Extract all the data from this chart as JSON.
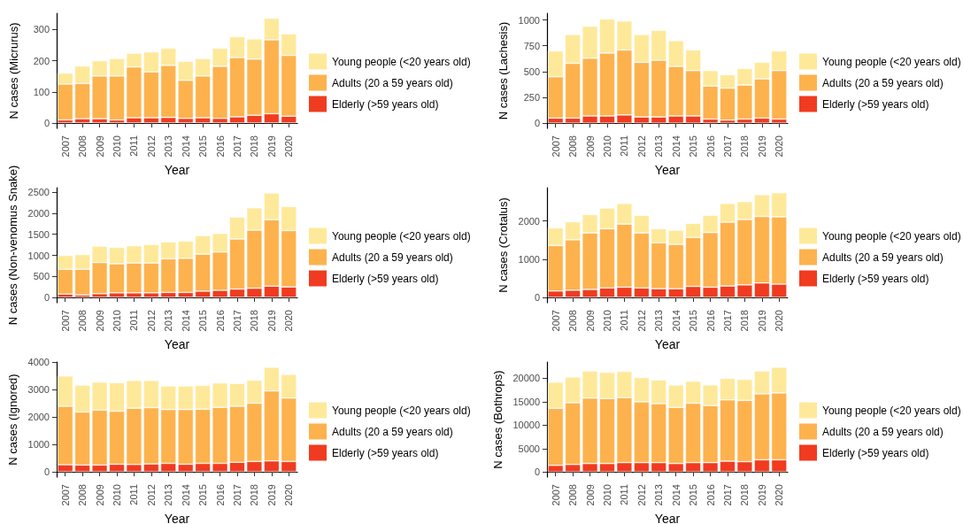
{
  "chart_data": [
    {
      "type": "bar",
      "stacked": true,
      "xlabel": "Year",
      "ylabel": "N cases (Micrurus)",
      "categories": [
        "2007",
        "2008",
        "2009",
        "2010",
        "2011",
        "2012",
        "2013",
        "2014",
        "2015",
        "2016",
        "2017",
        "2018",
        "2019",
        "2020"
      ],
      "ylim": [
        -17,
        352
      ],
      "yticks": [
        0,
        100,
        200,
        300
      ],
      "grid": false,
      "legend": "right",
      "series": [
        {
          "name": "Elderly (>59 years old)",
          "color": "#f03b20",
          "values": [
            10,
            14,
            14,
            10,
            17,
            17,
            18,
            15,
            17,
            15,
            20,
            25,
            30,
            22
          ]
        },
        {
          "name": "Adults (20 a 59 years old)",
          "color": "#fdb24d",
          "values": [
            115,
            113,
            137,
            141,
            163,
            147,
            167,
            122,
            134,
            167,
            190,
            180,
            237,
            195
          ]
        },
        {
          "name": "Young people (<20 years old)",
          "color": "#fee99a",
          "values": [
            35,
            56,
            49,
            56,
            44,
            64,
            55,
            61,
            56,
            58,
            67,
            65,
            69,
            69
          ]
        }
      ]
    },
    {
      "type": "bar",
      "stacked": true,
      "xlabel": "Year",
      "ylabel": "N cases (Lachesis)",
      "categories": [
        "2007",
        "2008",
        "2009",
        "2010",
        "2011",
        "2012",
        "2013",
        "2014",
        "2015",
        "2016",
        "2017",
        "2018",
        "2019",
        "2020"
      ],
      "ylim": [
        -50,
        1065
      ],
      "yticks": [
        0,
        250,
        500,
        750,
        1000
      ],
      "grid": false,
      "legend": "right",
      "series": [
        {
          "name": "Elderly (>59 years old)",
          "color": "#f03b20",
          "values": [
            50,
            50,
            70,
            70,
            80,
            60,
            60,
            70,
            70,
            40,
            30,
            40,
            50,
            40
          ]
        },
        {
          "name": "Adults (20 a 59 years old)",
          "color": "#fdb24d",
          "values": [
            400,
            530,
            560,
            610,
            630,
            530,
            550,
            480,
            440,
            320,
            310,
            330,
            380,
            470
          ]
        },
        {
          "name": "Young people (<20 years old)",
          "color": "#fee99a",
          "values": [
            250,
            280,
            310,
            330,
            280,
            270,
            290,
            250,
            200,
            150,
            130,
            160,
            160,
            190
          ]
        }
      ]
    },
    {
      "type": "bar",
      "stacked": true,
      "xlabel": "Year",
      "ylabel": "N cases (Non-venomus Snake)",
      "categories": [
        "2007",
        "2008",
        "2009",
        "2010",
        "2011",
        "2012",
        "2013",
        "2014",
        "2015",
        "2016",
        "2017",
        "2018",
        "2019",
        "2020"
      ],
      "ylim": [
        -125,
        2609
      ],
      "yticks": [
        0,
        500,
        1000,
        1500,
        2000,
        2500
      ],
      "grid": false,
      "legend": "right",
      "series": [
        {
          "name": "Elderly (>59 years old)",
          "color": "#f03b20",
          "values": [
            80,
            60,
            90,
            110,
            110,
            110,
            120,
            120,
            150,
            170,
            200,
            220,
            270,
            250
          ]
        },
        {
          "name": "Adults (20 a 59 years old)",
          "color": "#fdb24d",
          "values": [
            590,
            610,
            740,
            690,
            710,
            710,
            800,
            810,
            880,
            910,
            1190,
            1380,
            1580,
            1340
          ]
        },
        {
          "name": "Young people (<20 years old)",
          "color": "#fee99a",
          "values": [
            330,
            350,
            390,
            390,
            410,
            440,
            400,
            410,
            440,
            440,
            520,
            530,
            630,
            570
          ]
        }
      ]
    },
    {
      "type": "bar",
      "stacked": true,
      "xlabel": "Year",
      "ylabel": "N cases (Crotalus)",
      "categories": [
        "2007",
        "2008",
        "2009",
        "2010",
        "2011",
        "2012",
        "2013",
        "2014",
        "2015",
        "2016",
        "2017",
        "2018",
        "2019",
        "2020"
      ],
      "ylim": [
        -137,
        2873
      ],
      "yticks": [
        0,
        1000,
        2000
      ],
      "grid": false,
      "legend": "right",
      "series": [
        {
          "name": "Elderly (>59 years old)",
          "color": "#f03b20",
          "values": [
            170,
            190,
            210,
            250,
            270,
            250,
            230,
            230,
            290,
            270,
            300,
            330,
            380,
            350
          ]
        },
        {
          "name": "Adults (20 a 59 years old)",
          "color": "#fdb24d",
          "values": [
            1190,
            1320,
            1480,
            1550,
            1650,
            1440,
            1200,
            1160,
            1280,
            1430,
            1670,
            1710,
            1740,
            1760
          ]
        },
        {
          "name": "Young people (<20 years old)",
          "color": "#fee99a",
          "values": [
            460,
            470,
            480,
            540,
            540,
            460,
            370,
            370,
            370,
            450,
            490,
            470,
            570,
            630
          ]
        }
      ]
    },
    {
      "type": "bar",
      "stacked": true,
      "xlabel": "Year",
      "ylabel": "N cases (Ignored)",
      "categories": [
        "2007",
        "2008",
        "2009",
        "2010",
        "2011",
        "2012",
        "2013",
        "2014",
        "2015",
        "2016",
        "2017",
        "2018",
        "2019",
        "2020"
      ],
      "ylim": [
        -190,
        4000
      ],
      "yticks": [
        0,
        1000,
        2000,
        3000,
        4000
      ],
      "grid": false,
      "legend": "right",
      "series": [
        {
          "name": "Elderly (>59 years old)",
          "color": "#f03b20",
          "values": [
            260,
            250,
            250,
            280,
            270,
            290,
            310,
            280,
            310,
            310,
            350,
            380,
            400,
            380
          ]
        },
        {
          "name": "Adults (20 a 59 years old)",
          "color": "#fdb24d",
          "values": [
            2130,
            1930,
            2000,
            1930,
            2050,
            2050,
            1960,
            1990,
            1970,
            2040,
            2040,
            2120,
            2550,
            2310
          ]
        },
        {
          "name": "Young people (<20 years old)",
          "color": "#fee99a",
          "values": [
            1100,
            980,
            1020,
            1040,
            1010,
            990,
            860,
            860,
            870,
            890,
            830,
            840,
            860,
            860
          ]
        }
      ]
    },
    {
      "type": "bar",
      "stacked": true,
      "xlabel": "Year",
      "ylabel": "N cases (Bothrops)",
      "categories": [
        "2007",
        "2008",
        "2009",
        "2010",
        "2011",
        "2012",
        "2013",
        "2014",
        "2015",
        "2016",
        "2017",
        "2018",
        "2019",
        "2020"
      ],
      "ylim": [
        -1100,
        23500
      ],
      "yticks": [
        0,
        5000,
        10000,
        15000,
        20000
      ],
      "grid": false,
      "legend": "right",
      "series": [
        {
          "name": "Elderly (>59 years old)",
          "color": "#f03b20",
          "values": [
            1400,
            1600,
            1800,
            1800,
            2000,
            2000,
            2000,
            1800,
            2000,
            2000,
            2300,
            2200,
            2600,
            2600
          ]
        },
        {
          "name": "Adults (20 a 59 years old)",
          "color": "#fdb24d",
          "values": [
            12200,
            13200,
            14000,
            13900,
            13900,
            13000,
            12600,
            12000,
            12700,
            12200,
            13100,
            13100,
            14100,
            14300
          ]
        },
        {
          "name": "Young people (<20 years old)",
          "color": "#fee99a",
          "values": [
            5600,
            5500,
            5800,
            5600,
            5600,
            5200,
            5100,
            4800,
            4700,
            4400,
            4600,
            4500,
            4900,
            5500
          ]
        }
      ]
    }
  ]
}
